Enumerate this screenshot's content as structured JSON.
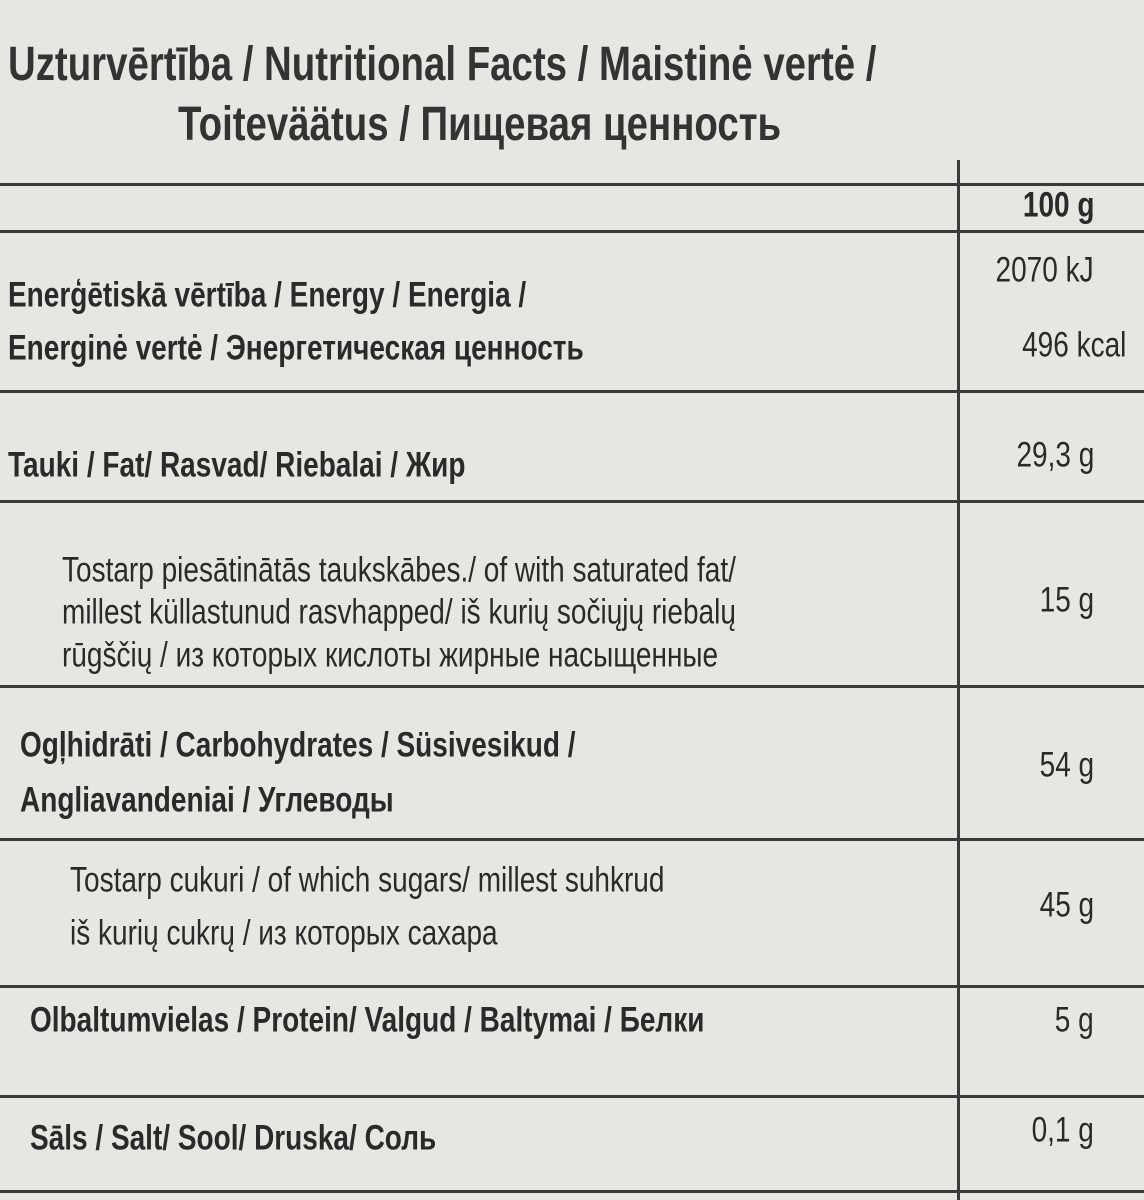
{
  "title": [
    "Uzturvērtība / Nutritional Facts / Maistinė vertė /",
    "Toiteväätus / Пищевая ценность"
  ],
  "table": {
    "header": "100 g",
    "rows": [
      {
        "label": [
          "Enerģētiskā vērtība / Energy / Energia /",
          "Energinė vertė / Энергетическая ценность"
        ],
        "values": [
          "2070 kJ",
          "496 kcal"
        ]
      },
      {
        "label": [
          "Tauki / Fat/ Rasvad/ Riebalai / Жир"
        ],
        "values": [
          "29,3 g"
        ]
      },
      {
        "label": [
          "Tostarp piesātinātās taukskābes./ of with saturated fat/",
          "millest küllastunud rasvhapped/ iš kurių sočiųjų riebalų",
          "rūgščių / из которых кислоты жирные насыщенные"
        ],
        "values": [
          "15 g"
        ]
      },
      {
        "label": [
          "Ogļhidrāti / Carbohydrates / Süsivesikud /",
          "Angliavandeniai / Углеводы"
        ],
        "values": [
          "54 g"
        ]
      },
      {
        "label": [
          "Tostarp cukuri / of which sugars/ millest suhkrud",
          "iš kurių cukrų / из которых сахара"
        ],
        "values": [
          "45 g"
        ]
      },
      {
        "label": [
          "Olbaltumvielas / Protein/ Valgud / Baltymai / Белки"
        ],
        "values": [
          "5 g"
        ]
      },
      {
        "label": [
          "Sāls / Salt/ Sool/ Druska/ Соль"
        ],
        "values": [
          "0,1 g"
        ]
      }
    ]
  }
}
